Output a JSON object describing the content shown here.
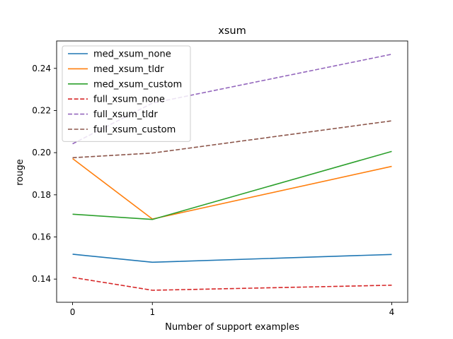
{
  "chart_data": {
    "type": "line",
    "title": "xsum",
    "xlabel": "Number of support examples",
    "ylabel": "rouge",
    "x": [
      0,
      1,
      4
    ],
    "x_tick_labels": [
      "0",
      "1",
      "4"
    ],
    "xlim": [
      -0.2,
      4.2
    ],
    "ylim": [
      0.129,
      0.253
    ],
    "y_ticks": [
      0.14,
      0.16,
      0.18,
      0.2,
      0.22,
      0.24
    ],
    "y_tick_labels": [
      "0.14",
      "0.16",
      "0.18",
      "0.20",
      "0.22",
      "0.24"
    ],
    "grid": false,
    "legend_position": "upper-left",
    "series": [
      {
        "name": "med_xsum_none",
        "values": [
          0.1518,
          0.148,
          0.1517
        ],
        "color": "#1f77b4",
        "style": "solid"
      },
      {
        "name": "med_xsum_tldr",
        "values": [
          0.1972,
          0.1685,
          0.1935
        ],
        "color": "#ff7f0e",
        "style": "solid"
      },
      {
        "name": "med_xsum_custom",
        "values": [
          0.1708,
          0.1683,
          0.2006
        ],
        "color": "#2ca02c",
        "style": "solid"
      },
      {
        "name": "full_xsum_none",
        "values": [
          0.1408,
          0.1347,
          0.1371
        ],
        "color": "#d62728",
        "style": "dashed"
      },
      {
        "name": "full_xsum_tldr",
        "values": [
          0.2042,
          0.2235,
          0.2467
        ],
        "color": "#9467bd",
        "style": "dashed"
      },
      {
        "name": "full_xsum_custom",
        "values": [
          0.1976,
          0.1998,
          0.2151
        ],
        "color": "#8c564b",
        "style": "dashed"
      }
    ]
  }
}
